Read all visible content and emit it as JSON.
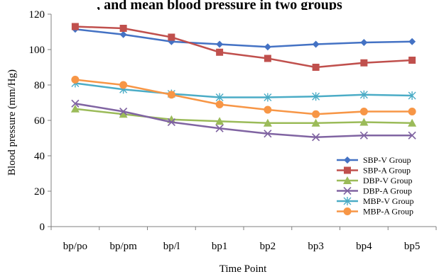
{
  "top_text": ", and mean blood pressure in two groups",
  "chart_data": {
    "type": "line",
    "title": "",
    "xlabel": "Time Point",
    "ylabel": "Blood pressure (mm/Hg)",
    "categories": [
      "bp/po",
      "bp/pm",
      "bp/l",
      "bp1",
      "bp2",
      "bp3",
      "bp4",
      "bp5"
    ],
    "ylim": [
      0,
      120
    ],
    "yticks": [
      0,
      20,
      40,
      60,
      80,
      100,
      120
    ],
    "grid": false,
    "legend_position": "bottom-right",
    "series": [
      {
        "name": "SBP-V Group",
        "color": "#4472c4",
        "marker": "diamond",
        "values": [
          111.5,
          108.5,
          104.5,
          103,
          101.5,
          103,
          104,
          104.5
        ]
      },
      {
        "name": "SBP-A Group",
        "color": "#c0504d",
        "marker": "square",
        "values": [
          113,
          112,
          107,
          98.5,
          95,
          90,
          92.5,
          94
        ]
      },
      {
        "name": "DBP-V Group",
        "color": "#9bbb59",
        "marker": "triangle",
        "values": [
          66.5,
          63.5,
          60.5,
          59.5,
          58.5,
          58.5,
          59,
          58.5
        ]
      },
      {
        "name": "DBP-A Group",
        "color": "#8064a2",
        "marker": "x",
        "values": [
          69.5,
          65,
          59,
          55.5,
          52.5,
          50.5,
          51.5,
          51.5
        ]
      },
      {
        "name": "MBP-V Group",
        "color": "#4bacc6",
        "marker": "star",
        "values": [
          81,
          77.5,
          75,
          73,
          73,
          73.5,
          74.5,
          74
        ]
      },
      {
        "name": "MBP-A Group",
        "color": "#f79646",
        "marker": "circle",
        "values": [
          83,
          80,
          74.5,
          69,
          66,
          63.5,
          65,
          65
        ]
      }
    ]
  }
}
